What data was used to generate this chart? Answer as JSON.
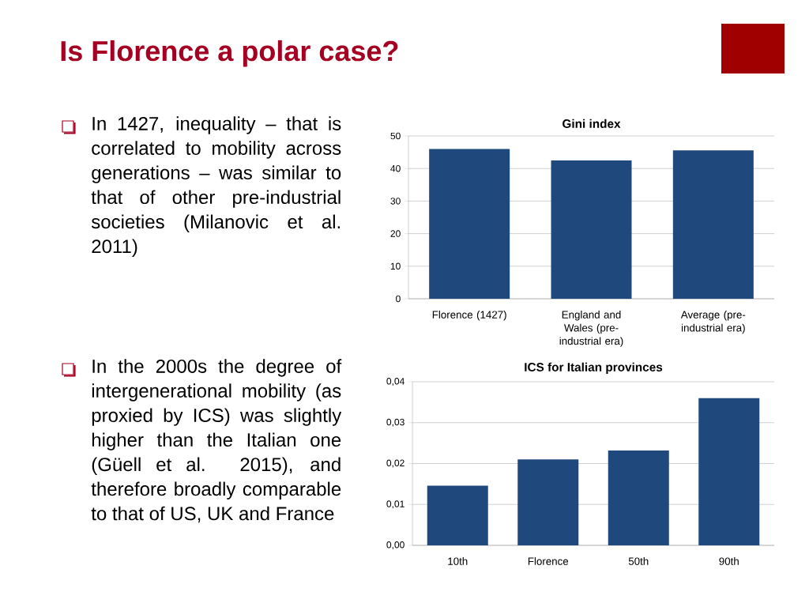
{
  "chart_data": [
    {
      "type": "other",
      "title": "Is Florence a polar case?",
      "annotations": [
        "In 1427, inequality – that is correlated to mobility across generations – was similar to that of other pre-industrial societies (Milanovic et al. 2011)",
        "In the 2000s the degree of intergenerational mobility (as proxied by ICS) was slightly higher than the Italian one (Güell et al. 2015), and therefore broadly comparable to that of US, UK and France"
      ]
    },
    {
      "type": "bar",
      "title": "Gini index",
      "categories": [
        "Florence (1427)",
        "England and Wales (pre-industrial era)",
        "Average (pre-industrial era)"
      ],
      "values": [
        46.0,
        42.5,
        45.6
      ],
      "color": "#1f497d",
      "ylim": [
        0,
        50
      ],
      "yticks": [
        0,
        10,
        20,
        30,
        40,
        50
      ],
      "grid": "y"
    },
    {
      "type": "bar",
      "title": "ICS for Italian provinces",
      "categories": [
        "10th",
        "Florence",
        "50th",
        "90th"
      ],
      "values": [
        0.0146,
        0.021,
        0.0232,
        0.036
      ],
      "color": "#1f497d",
      "ylim": [
        0,
        0.04
      ],
      "yticks": [
        {
          "value": 0,
          "label": "0,00"
        },
        {
          "value": 0.01,
          "label": "0,01"
        },
        {
          "value": 0.02,
          "label": "0,02"
        },
        {
          "value": 0.03,
          "label": "0,03"
        },
        {
          "value": 0.04,
          "label": "0,04"
        }
      ],
      "grid": "y"
    }
  ]
}
